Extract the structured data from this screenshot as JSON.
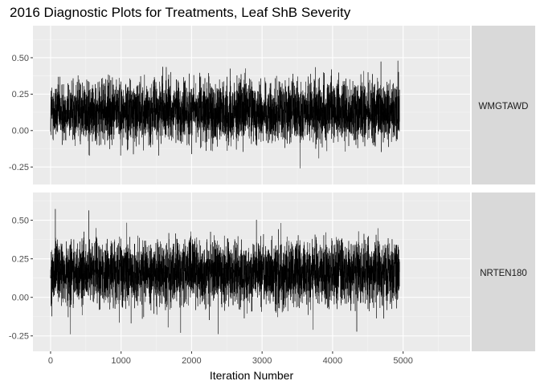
{
  "chart_data": {
    "type": "line",
    "title": "2016 Diagnostic Plots for Treatments, Leaf ShB Severity",
    "xlabel": "Iteration Number",
    "ylabel": "",
    "xlim": [
      -250,
      5950
    ],
    "x_ticks": [
      0,
      1000,
      2000,
      3000,
      4000,
      5000
    ],
    "x_tick_labels": [
      "0",
      "1000",
      "2000",
      "3000",
      "4000",
      "5000"
    ],
    "y_ticks": [
      -0.25,
      0.0,
      0.25,
      0.5
    ],
    "y_tick_labels": [
      "-0.25",
      "0.00",
      "0.25",
      "0.50"
    ],
    "grid": true,
    "iterations": 4950,
    "panels": [
      {
        "strip_label": "WMGTAWD",
        "ylim": [
          -0.37,
          0.72
        ],
        "mean": 0.13,
        "sd": 0.1,
        "max": 0.6,
        "min": -0.35
      },
      {
        "strip_label": "NRTEN180",
        "ylim": [
          -0.35,
          0.68
        ],
        "mean": 0.16,
        "sd": 0.1,
        "max": 0.66,
        "min": -0.34
      }
    ]
  }
}
